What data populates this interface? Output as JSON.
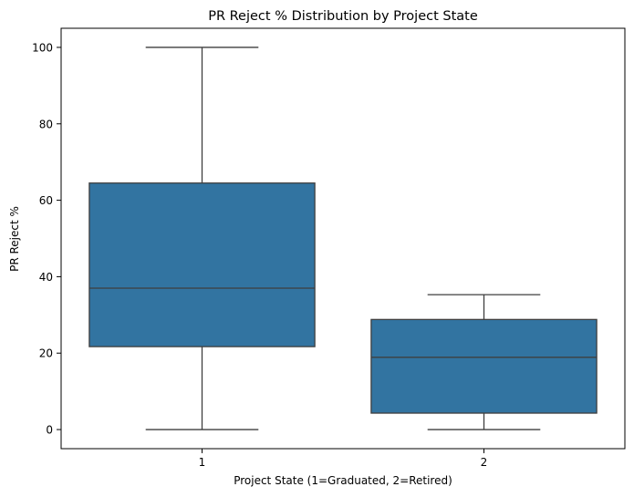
{
  "chart_data": {
    "type": "box",
    "title": "PR Reject % Distribution by Project State",
    "xlabel": "Project State (1=Graduated, 2=Retired)",
    "ylabel": "PR Reject %",
    "categories": [
      "1",
      "2"
    ],
    "boxes": [
      {
        "category": "1",
        "whisker_low": 0,
        "q1": 21.7,
        "median": 37.0,
        "q3": 64.5,
        "whisker_high": 100
      },
      {
        "category": "2",
        "whisker_low": 0,
        "q1": 4.3,
        "median": 18.9,
        "q3": 28.8,
        "whisker_high": 35.3
      }
    ],
    "yticks": [
      0,
      20,
      40,
      60,
      80,
      100
    ],
    "ylim": [
      -5,
      105
    ],
    "grid": false,
    "colors": {
      "box_fill": "#3274a1",
      "line": "#3f3f3f",
      "axes": "#000000"
    }
  }
}
